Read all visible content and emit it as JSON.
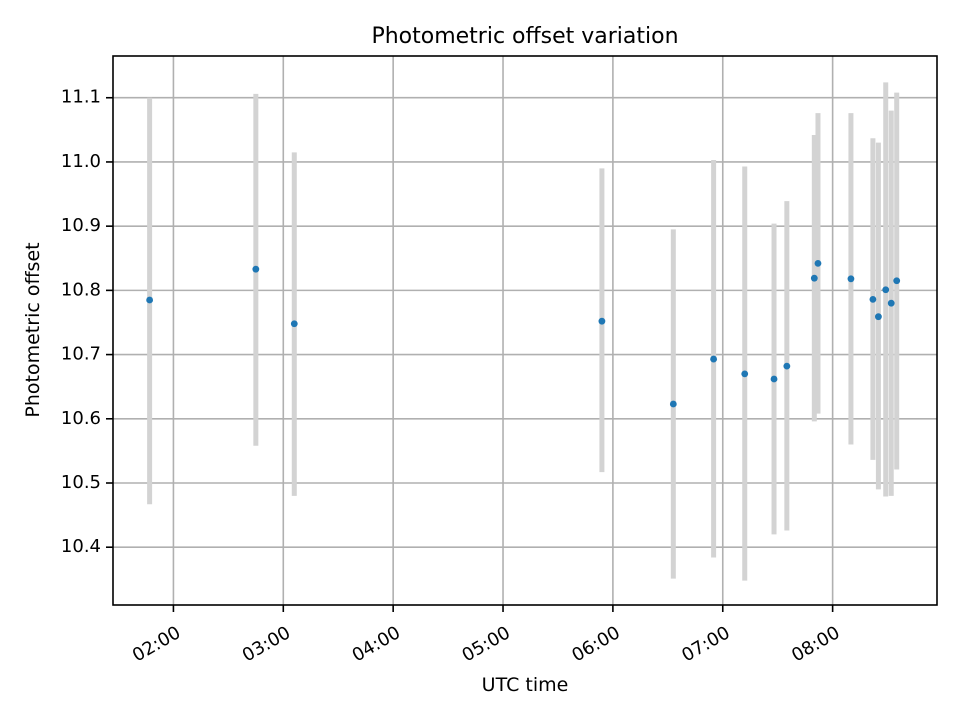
{
  "chart_data": {
    "type": "scatter",
    "title": "Photometric offset variation",
    "xlabel": "UTC time",
    "ylabel": "Photometric offset",
    "grid": true,
    "xlim": [
      "01:27",
      "08:57"
    ],
    "ylim": [
      10.31,
      11.165
    ],
    "xticks": [
      "02:00",
      "03:00",
      "04:00",
      "05:00",
      "06:00",
      "07:00",
      "08:00"
    ],
    "yticks": [
      "10.4",
      "10.5",
      "10.6",
      "10.7",
      "10.8",
      "10.9",
      "11.0",
      "11.1"
    ],
    "point_color": "#1f77b4",
    "errorbar_color": "#d3d3d3",
    "points": [
      {
        "x": "01:47",
        "y": 10.785,
        "low": 10.467,
        "high": 11.1
      },
      {
        "x": "02:45",
        "y": 10.833,
        "low": 10.558,
        "high": 11.106
      },
      {
        "x": "03:06",
        "y": 10.748,
        "low": 10.48,
        "high": 11.015
      },
      {
        "x": "05:54",
        "y": 10.752,
        "low": 10.517,
        "high": 10.99
      },
      {
        "x": "06:33",
        "y": 10.623,
        "low": 10.351,
        "high": 10.895
      },
      {
        "x": "06:55",
        "y": 10.693,
        "low": 10.384,
        "high": 11.003
      },
      {
        "x": "07:12",
        "y": 10.67,
        "low": 10.348,
        "high": 10.993
      },
      {
        "x": "07:28",
        "y": 10.662,
        "low": 10.42,
        "high": 10.904
      },
      {
        "x": "07:35",
        "y": 10.682,
        "low": 10.426,
        "high": 10.939
      },
      {
        "x": "07:50",
        "y": 10.819,
        "low": 10.596,
        "high": 11.042
      },
      {
        "x": "07:52",
        "y": 10.842,
        "low": 10.608,
        "high": 11.076
      },
      {
        "x": "08:10",
        "y": 10.818,
        "low": 10.56,
        "high": 11.076
      },
      {
        "x": "08:22",
        "y": 10.786,
        "low": 10.536,
        "high": 11.037
      },
      {
        "x": "08:25",
        "y": 10.759,
        "low": 10.49,
        "high": 11.03
      },
      {
        "x": "08:29",
        "y": 10.801,
        "low": 10.479,
        "high": 11.124
      },
      {
        "x": "08:32",
        "y": 10.78,
        "low": 10.48,
        "high": 11.08
      },
      {
        "x": "08:35",
        "y": 10.815,
        "low": 10.521,
        "high": 11.108
      }
    ]
  }
}
